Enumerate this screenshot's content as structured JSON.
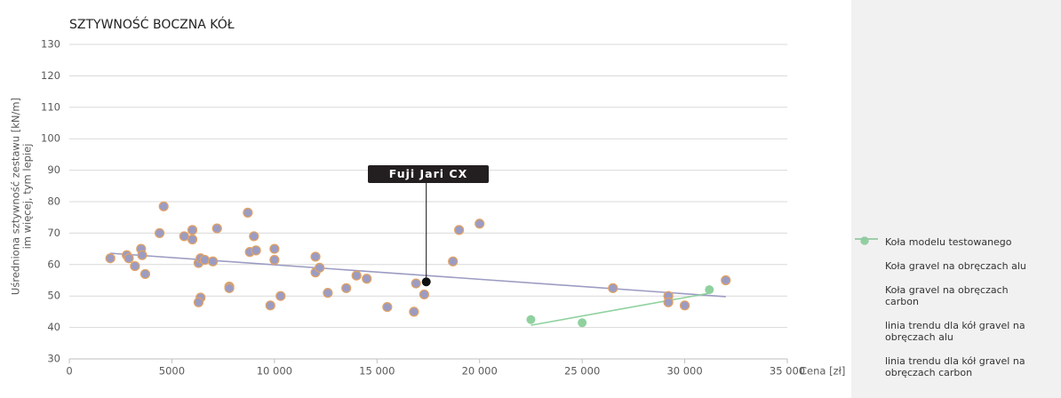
{
  "chart_data": {
    "type": "scatter",
    "title": "SZTYWNOŚĆ BOCZNA KÓŁ",
    "y_label": [
      "Uśredniona sztywność zestawu [kN/m]",
      "im więcej, tym lepiej"
    ],
    "x_label": "Cena [zł]",
    "xlim": [
      0,
      35000
    ],
    "xticks": [
      0,
      5000,
      {
        "value": 10000,
        "label": "10 000"
      },
      {
        "value": 15000,
        "label": "15 000"
      },
      {
        "value": 20000,
        "label": "20 000"
      },
      {
        "value": 25000,
        "label": "25 000"
      },
      {
        "value": 30000,
        "label": "30 000"
      },
      {
        "value": 35000,
        "label": "35 000"
      }
    ],
    "ylim": [
      30,
      130
    ],
    "yticks": [
      30,
      40,
      50,
      60,
      70,
      80,
      90,
      100,
      110,
      120,
      130
    ],
    "grid": true,
    "annotation": "Fuji Jari CX",
    "series": [
      {
        "name": "Koła modelu testowanego",
        "color": "#111111",
        "x": [
          17400
        ],
        "values": [
          54.5
        ]
      },
      {
        "name": "Koła gravel na obręczach alu",
        "color": "#9c9cc2",
        "edge": "#e3a262",
        "x": [
          2000,
          2800,
          2900,
          3200,
          3500,
          3550,
          3700,
          4400,
          4600,
          5600,
          6000,
          6000,
          6300,
          6400,
          6600,
          6400,
          6300,
          7000,
          7200,
          7800,
          7800,
          8700,
          8800,
          9000,
          9100,
          9800,
          10000,
          10000,
          10300,
          12000,
          12000,
          12200,
          12600,
          13500,
          14000,
          14500,
          15500,
          16800,
          16900,
          17300,
          18700,
          19000,
          20000,
          26500,
          29200,
          29200,
          30000,
          32000
        ],
        "values": [
          62,
          63,
          62,
          59.5,
          65,
          63,
          57,
          70,
          78.5,
          69,
          71,
          68,
          60.5,
          62,
          61.5,
          49.5,
          48,
          61,
          71.5,
          53,
          52.5,
          76.5,
          64,
          69,
          64.5,
          47,
          65,
          61.5,
          50,
          62.5,
          57.5,
          59,
          51,
          52.5,
          56.5,
          55.5,
          46.5,
          45,
          54,
          50.5,
          61,
          71,
          73,
          52.5,
          50,
          48,
          47,
          55
        ]
      },
      {
        "name": "Koła gravel na obręczach carbon",
        "color": "#8fd19e",
        "x": [
          22500,
          25000,
          31200
        ],
        "values": [
          42.5,
          41.5,
          52
        ]
      }
    ],
    "trendlines": [
      {
        "name": "linia trendu dla kół gravel na obręczach alu",
        "color": "#9c9cc2",
        "x": [
          2000,
          32000
        ],
        "values": [
          63.6,
          49.8
        ]
      },
      {
        "name": "linia trendu dla kół gravel na obręczach carbon",
        "color": "#8fd19e",
        "x": [
          22500,
          31200
        ],
        "values": [
          40.7,
          50.9
        ]
      }
    ]
  }
}
